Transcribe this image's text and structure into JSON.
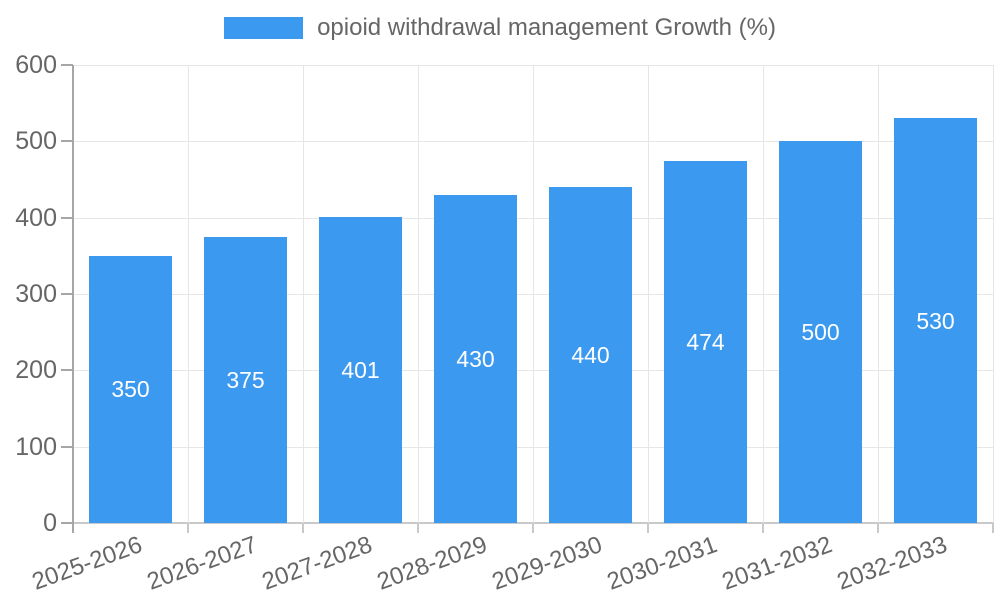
{
  "legend": {
    "label": "opioid withdrawal management Growth (%)",
    "swatch_color": "#3b99f0"
  },
  "chart_data": {
    "type": "bar",
    "title": "opioid withdrawal management Growth (%)",
    "categories": [
      "2025-2026",
      "2026-2027",
      "2027-2028",
      "2028-2029",
      "2029-2030",
      "2030-2031",
      "2031-2032",
      "2032-2033"
    ],
    "values": [
      350,
      375,
      401,
      430,
      440,
      474,
      500,
      530
    ],
    "value_labels": [
      "350",
      "375",
      "401",
      "430",
      "440",
      "474",
      "500",
      "530"
    ],
    "xlabel": "",
    "ylabel": "",
    "ylim": [
      0,
      600
    ],
    "yticks": [
      0,
      100,
      200,
      300,
      400,
      500,
      600
    ],
    "grid": true,
    "legend_position": "top",
    "bar_color": "#3b99f0",
    "value_label_color": "#ffffff",
    "tick_label_color": "#666666",
    "gridline_color": "#e6e6e6",
    "axis_line_color": "#a6a6a6",
    "baseline_color": "#c9c9c9"
  }
}
